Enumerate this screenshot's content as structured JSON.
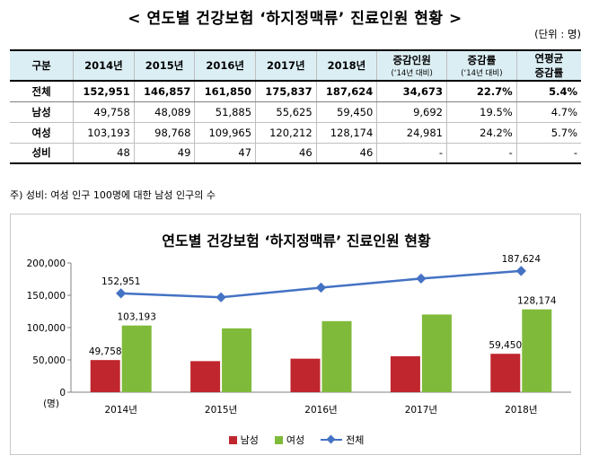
{
  "page": {
    "title": "< 연도별 건강보험 ‘하지정맥류’ 진료인원 현황 >",
    "unit": "(단위 : 명)",
    "note": "주) 성비: 여성 인구 100명에 대한 남성 인구의 수"
  },
  "table": {
    "headers": [
      {
        "label": "구분",
        "sub": ""
      },
      {
        "label": "2014년",
        "sub": ""
      },
      {
        "label": "2015년",
        "sub": ""
      },
      {
        "label": "2016년",
        "sub": ""
      },
      {
        "label": "2017년",
        "sub": ""
      },
      {
        "label": "2018년",
        "sub": ""
      },
      {
        "label": "증감인원",
        "sub": "(‘14년 대비)"
      },
      {
        "label": "증감률",
        "sub": "(‘14년 대비)"
      },
      {
        "label": "연평균",
        "sub": "증감률"
      }
    ],
    "rows": [
      {
        "label": "전체",
        "cells": [
          "152,951",
          "146,857",
          "161,850",
          "175,837",
          "187,624",
          "34,673",
          "22.7%",
          "5.4%"
        ]
      },
      {
        "label": "남성",
        "cells": [
          "49,758",
          "48,089",
          "51,885",
          "55,625",
          "59,450",
          "9,692",
          "19.5%",
          "4.7%"
        ]
      },
      {
        "label": "여성",
        "cells": [
          "103,193",
          "98,768",
          "109,965",
          "120,212",
          "128,174",
          "24,981",
          "24.2%",
          "5.7%"
        ]
      },
      {
        "label": "성비",
        "cells": [
          "48",
          "49",
          "47",
          "46",
          "46",
          "-",
          "-",
          "-"
        ]
      }
    ]
  },
  "chart_data": {
    "type": "bar",
    "title": "연도별 건강보험 ‘하지정맥류’ 진료인원 현황",
    "xlabel": "",
    "ylabel": "(명)",
    "categories": [
      "2014년",
      "2015년",
      "2016년",
      "2017년",
      "2018년"
    ],
    "ylim": [
      0,
      200000
    ],
    "yticks": [
      0,
      50000,
      100000,
      150000,
      200000
    ],
    "ytick_labels": [
      "0",
      "50,000",
      "100,000",
      "150,000",
      "200,000"
    ],
    "grid": false,
    "legend_position": "bottom",
    "series": [
      {
        "name": "남성",
        "kind": "bar",
        "color": "#c0262d",
        "values": [
          49758,
          48089,
          51885,
          55625,
          59450
        ],
        "labels": [
          "49,758",
          "",
          "",
          "",
          "59,450"
        ]
      },
      {
        "name": "여성",
        "kind": "bar",
        "color": "#7fba3a",
        "values": [
          103193,
          98768,
          109965,
          120212,
          128174
        ],
        "labels": [
          "103,193",
          "",
          "",
          "",
          "128,174"
        ]
      },
      {
        "name": "전체",
        "kind": "line",
        "color": "#4472c4",
        "values": [
          152951,
          146857,
          161850,
          175837,
          187624
        ],
        "labels": [
          "152,951",
          "",
          "",
          "",
          "187,624"
        ]
      }
    ]
  }
}
